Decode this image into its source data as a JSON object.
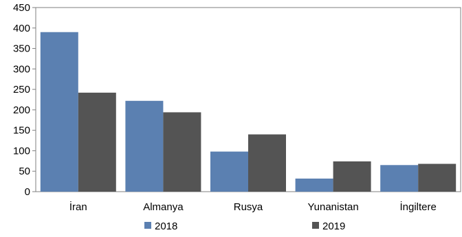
{
  "chart_data": {
    "type": "bar",
    "title": "",
    "xlabel": "",
    "ylabel": "",
    "categories": [
      "İran",
      "Almanya",
      "Rusya",
      "Yunanistan",
      "İngiltere"
    ],
    "series": [
      {
        "name": "2018",
        "color": "#5b80b1",
        "values": [
          390,
          222,
          98,
          32,
          65
        ]
      },
      {
        "name": "2019",
        "color": "#545454",
        "values": [
          242,
          194,
          140,
          74,
          68
        ]
      }
    ],
    "ylim": [
      0,
      450
    ],
    "yticks": [
      0,
      50,
      100,
      150,
      200,
      250,
      300,
      350,
      400,
      450
    ],
    "grid": false,
    "legend_position": "bottom"
  }
}
